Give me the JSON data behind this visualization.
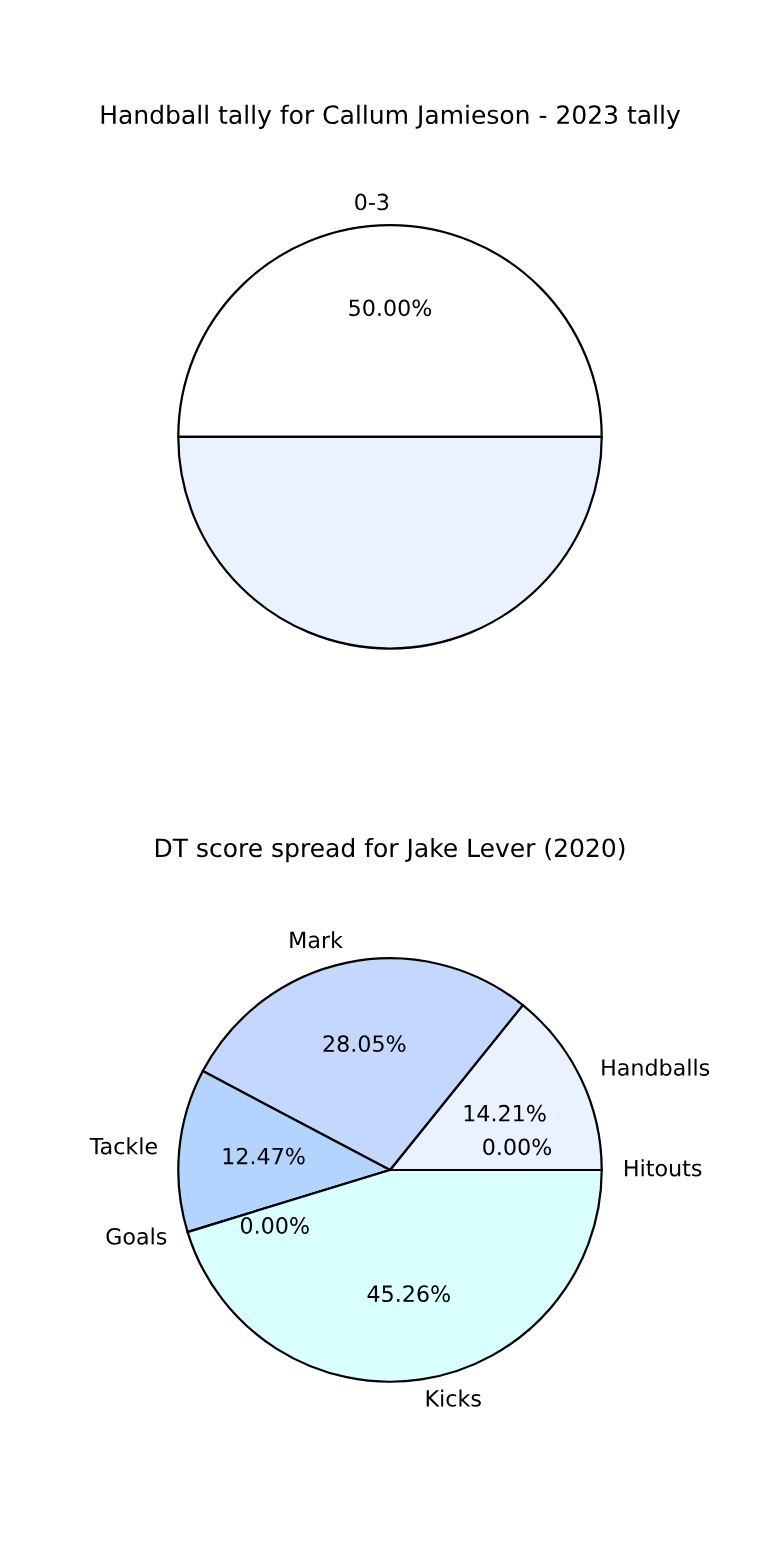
{
  "chart_data": [
    {
      "type": "pie",
      "title": "Handball tally for Callum Jamieson - 2023 tally",
      "categories": [
        "0-3",
        null
      ],
      "values": [
        50,
        50
      ],
      "colors": [
        "#ffffff",
        "#eaf1ff"
      ],
      "value_labels": [
        "50.00%",
        null
      ],
      "legend": false
    },
    {
      "type": "pie",
      "title": "DT score spread for Jake Lever (2020)",
      "categories": [
        "Handballs",
        "Mark",
        "Tackle",
        "Goals",
        "Kicks",
        "Hitouts"
      ],
      "values": [
        14.21,
        28.05,
        12.47,
        0.0,
        45.26,
        0.0
      ],
      "colors": [
        "#eaf1ff",
        "#c4d8ff",
        "#b3d4ff",
        "#ffffff",
        "#d9ffff",
        "#ffffff"
      ],
      "value_labels": [
        "14.21%",
        "28.05%",
        "12.47%",
        "0.00%",
        "45.26%",
        "0.00%"
      ],
      "legend": false
    }
  ]
}
